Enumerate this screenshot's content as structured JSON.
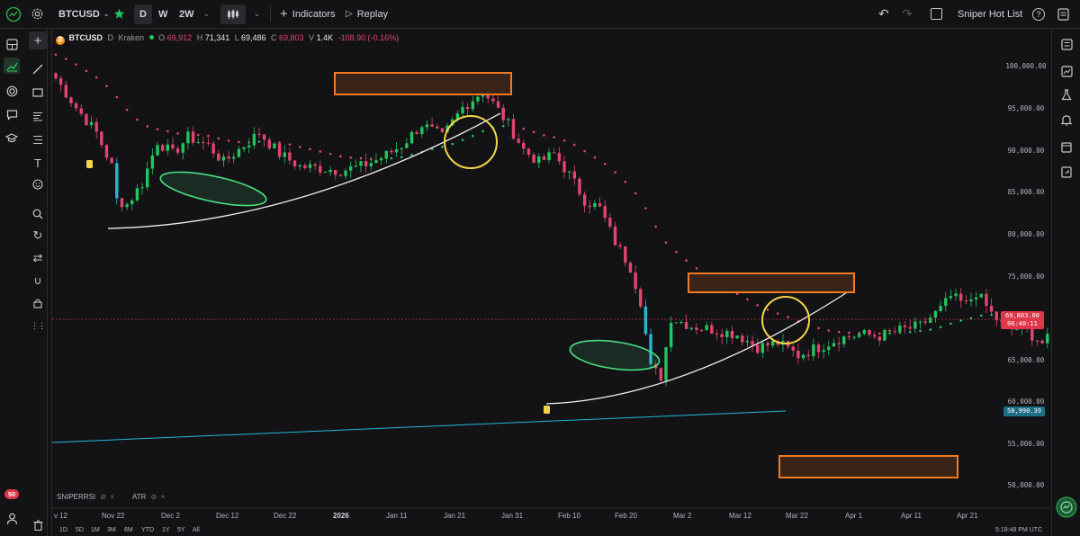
{
  "header": {
    "symbol": "BTCUSD",
    "intervals": [
      "D",
      "W",
      "2W"
    ],
    "active_interval": "D",
    "indicators_label": "Indicators",
    "replay_label": "Replay",
    "watchlist_label": "Sniper Hot List"
  },
  "legend": {
    "symbol": "BTCUSD",
    "interval": "D",
    "exchange": "Kraken",
    "open_label": "O",
    "open": "69,912",
    "high_label": "H",
    "high": "71,341",
    "low_label": "L",
    "low": "69,486",
    "close_label": "C",
    "close": "69,803",
    "volume_label": "V",
    "volume": "1.4K",
    "change": "-108.90 (-0.16%)"
  },
  "indicators": [
    {
      "name": "SNIPERRSI"
    },
    {
      "name": "ATR"
    }
  ],
  "price_axis": {
    "labels": [
      "100,000.00",
      "95,000.00",
      "90,000.00",
      "85,000.00",
      "80,000.00",
      "75,000.00",
      "65,000.00",
      "60,000.00",
      "55,000.00",
      "50,000.00"
    ],
    "current_price": "69,803.00",
    "countdown": "06:40:11",
    "cyan_line_value": "58,990.39"
  },
  "time_axis": {
    "labels": [
      "v 12",
      "Nov 22",
      "Dec 2",
      "Dec 12",
      "Dec 22",
      "2026",
      "Jan 11",
      "Jan 21",
      "Jan 31",
      "Feb 10",
      "Feb 20",
      "Mar 2",
      "Mar 12",
      "Mar 22",
      "Apr 1",
      "Apr 11",
      "Apr 21"
    ]
  },
  "timeframes": [
    "1D",
    "5D",
    "1M",
    "3M",
    "6M",
    "YTD",
    "1Y",
    "5Y",
    "All"
  ],
  "clock": "5:19:48 PM UTC",
  "notifications_badge": "50",
  "colors": {
    "bull": "#22c55e",
    "bear": "#e0466e",
    "weak_bull": "#26b6d4",
    "orange_box": "#f07a22",
    "yellow_circle": "#f5d547",
    "green_ellipse": "#4ade80",
    "cyan_line": "#22b8d8",
    "ema_dots": "#e0466e",
    "accent": "#2ea043"
  }
}
